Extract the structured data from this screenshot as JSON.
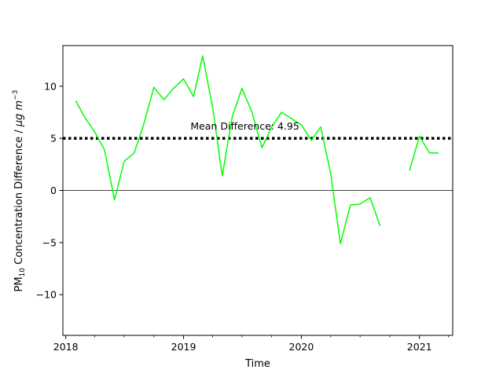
{
  "chart_data": {
    "type": "line",
    "xlabel": "Time",
    "ylabel": "PM",
    "ylabel_sub": "10",
    "ylabel_rest": " Concentration Difference / ",
    "ylabel_unit_mu": "μg",
    "ylabel_unit_m": "m",
    "ylabel_sup": "−3",
    "xlim": [
      "2017-12-23",
      "2021-04-14"
    ],
    "ylim": [
      -13.9,
      13.9
    ],
    "x_ticks": [
      {
        "date": "2018-01-01",
        "label": "2018"
      },
      {
        "date": "2019-01-01",
        "label": "2019"
      },
      {
        "date": "2020-01-01",
        "label": "2020"
      },
      {
        "date": "2021-01-01",
        "label": "2021"
      }
    ],
    "x_minor_ticks": [
      "2018-04-01",
      "2018-07-01",
      "2018-10-01",
      "2019-04-01",
      "2019-07-01",
      "2019-10-01",
      "2020-04-01",
      "2020-07-01",
      "2020-10-01",
      "2021-04-01"
    ],
    "y_ticks": [
      {
        "value": -10,
        "label": "−10"
      },
      {
        "value": -5,
        "label": "−5"
      },
      {
        "value": 0,
        "label": "0"
      },
      {
        "value": 5,
        "label": "5"
      },
      {
        "value": 10,
        "label": "10"
      }
    ],
    "series": [
      {
        "color": "#00ff00",
        "points": [
          [
            "2018-02-01",
            8.6
          ],
          [
            "2018-03-01",
            7.0
          ],
          [
            "2018-04-01",
            5.6
          ],
          [
            "2018-05-01",
            3.9
          ],
          [
            "2018-06-01",
            -0.9
          ],
          [
            "2018-07-01",
            2.8
          ],
          [
            "2018-08-01",
            3.6
          ],
          [
            "2018-09-01",
            6.5
          ],
          [
            "2018-10-01",
            9.9
          ],
          [
            "2018-11-01",
            8.7
          ],
          [
            "2018-12-01",
            9.8
          ],
          [
            "2019-01-01",
            10.7
          ],
          [
            "2019-02-01",
            9.0
          ],
          [
            "2019-03-01",
            12.9
          ],
          [
            "2019-04-01",
            8.0
          ],
          [
            "2019-05-01",
            1.4
          ],
          [
            "2019-06-01",
            7.1
          ],
          [
            "2019-07-01",
            9.8
          ],
          [
            "2019-08-01",
            7.5
          ],
          [
            "2019-09-01",
            4.1
          ],
          [
            "2019-10-01",
            6.1
          ],
          [
            "2019-11-01",
            7.5
          ],
          [
            "2019-12-01",
            6.9
          ],
          [
            "2020-01-01",
            6.3
          ],
          [
            "2020-02-01",
            4.8
          ],
          [
            "2020-03-01",
            6.1
          ],
          [
            "2020-04-01",
            1.6
          ],
          [
            "2020-05-01",
            -5.1
          ],
          [
            "2020-06-01",
            -1.4
          ],
          [
            "2020-07-01",
            -1.3
          ],
          [
            "2020-08-01",
            -0.7
          ],
          [
            "2020-09-01",
            -3.4
          ],
          [
            "2020-10-01",
            null
          ],
          [
            "2020-11-01",
            null
          ],
          [
            "2020-12-01",
            1.9
          ],
          [
            "2021-01-01",
            5.2
          ],
          [
            "2021-02-01",
            3.6
          ],
          [
            "2021-03-01",
            3.6
          ]
        ]
      }
    ],
    "reference_lines": [
      {
        "value": 5.0,
        "style": "dotted",
        "color": "#000000"
      },
      {
        "value": 0,
        "style": "solid",
        "color": "#000000"
      }
    ],
    "annotation": {
      "text": "Mean Difference: 4.95",
      "date": "2019-07-10",
      "value": 6.0
    },
    "grid": false,
    "legend": "none"
  }
}
